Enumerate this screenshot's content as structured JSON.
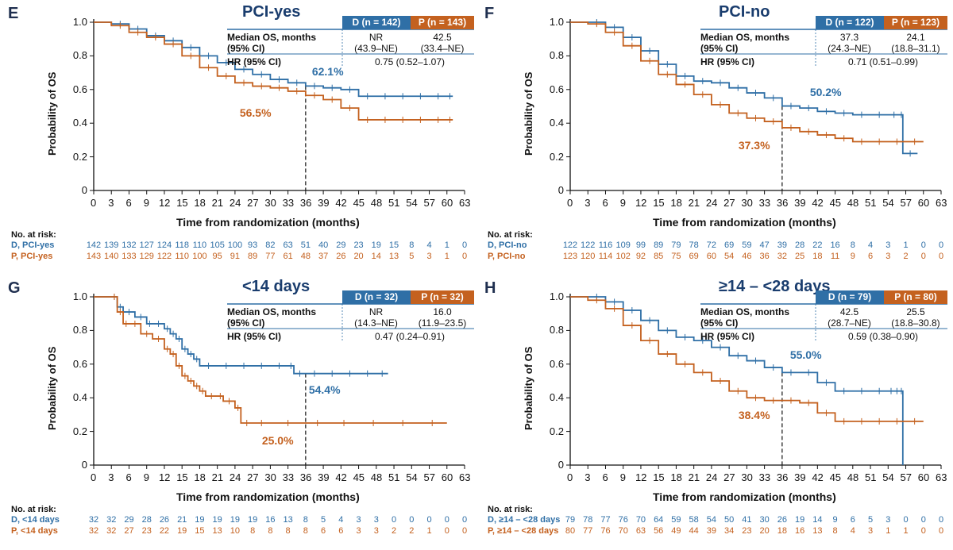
{
  "colors": {
    "D": "#2f6fa6",
    "P": "#c4611f",
    "header_d": "#2f6fa6",
    "header_p": "#c4611f"
  },
  "common": {
    "ylabel": "Probability of OS",
    "xlabel": "Time from randomization (months)",
    "yticks": [
      "1.0",
      "0.8",
      "0.6",
      "0.4",
      "0.2",
      "0"
    ],
    "xticks": [
      "0",
      "3",
      "6",
      "9",
      "12",
      "15",
      "18",
      "21",
      "24",
      "27",
      "30",
      "33",
      "36",
      "39",
      "42",
      "45",
      "48",
      "51",
      "54",
      "57",
      "60",
      "63"
    ],
    "risk_title": "No. at risk:",
    "table_labels": {
      "median": "Median OS, months",
      "ci": "(95% CI)",
      "hr": "HR (95% CI)"
    }
  },
  "chart_data": [
    {
      "type": "line",
      "panel": "E",
      "title": "PCI-yes",
      "xlabel": "Time from randomization (months)",
      "ylabel": "Probability of OS",
      "xlim": [
        0,
        63
      ],
      "ylim": [
        0,
        1.0
      ],
      "grid": false,
      "reference_month": 36,
      "header_d": "D (n = 142)",
      "header_p": "P (n = 143)",
      "median_d": "NR",
      "median_p": "42.5",
      "ci_d": "(43.9–NE)",
      "ci_p": "(33.4–NE)",
      "hr": "0.75 (0.52–1.07)",
      "label_d": "62.1%",
      "label_p": "56.5%",
      "risk_label_d": "D, PCI-yes",
      "risk_label_p": "P, PCI-yes",
      "risk_d": [
        "142",
        "139",
        "132",
        "127",
        "124",
        "118",
        "110",
        "105",
        "100",
        "93",
        "82",
        "63",
        "51",
        "40",
        "29",
        "23",
        "19",
        "15",
        "8",
        "4",
        "1",
        "0"
      ],
      "risk_p": [
        "143",
        "140",
        "133",
        "129",
        "122",
        "110",
        "100",
        "95",
        "91",
        "89",
        "77",
        "61",
        "48",
        "37",
        "26",
        "20",
        "14",
        "13",
        "5",
        "3",
        "1",
        "0"
      ],
      "series": [
        {
          "name": "D",
          "x": [
            0,
            3,
            6,
            9,
            12,
            15,
            18,
            21,
            24,
            27,
            30,
            33,
            36,
            39,
            42,
            45,
            48,
            51,
            54,
            57,
            60,
            61
          ],
          "y": [
            1.0,
            0.99,
            0.96,
            0.92,
            0.89,
            0.85,
            0.8,
            0.76,
            0.72,
            0.69,
            0.66,
            0.64,
            0.621,
            0.61,
            0.6,
            0.56,
            0.56,
            0.56,
            0.56,
            0.56,
            0.56,
            0.56
          ]
        },
        {
          "name": "P",
          "x": [
            0,
            3,
            6,
            9,
            12,
            15,
            18,
            21,
            24,
            27,
            30,
            33,
            36,
            39,
            42,
            45,
            48,
            51,
            54,
            57,
            60,
            61
          ],
          "y": [
            1.0,
            0.98,
            0.94,
            0.91,
            0.87,
            0.8,
            0.73,
            0.68,
            0.64,
            0.62,
            0.61,
            0.59,
            0.565,
            0.54,
            0.49,
            0.42,
            0.42,
            0.42,
            0.42,
            0.42,
            0.42,
            0.42
          ]
        }
      ]
    },
    {
      "type": "line",
      "panel": "F",
      "title": "PCI-no",
      "xlabel": "Time from randomization (months)",
      "ylabel": "Probability of OS",
      "xlim": [
        0,
        63
      ],
      "ylim": [
        0,
        1.0
      ],
      "grid": false,
      "reference_month": 36,
      "header_d": "D (n = 122)",
      "header_p": "P (n = 123)",
      "median_d": "37.3",
      "median_p": "24.1",
      "ci_d": "(24.3–NE)",
      "ci_p": "(18.8–31.1)",
      "hr": "0.71 (0.51–0.99)",
      "label_d": "50.2%",
      "label_p": "37.3%",
      "risk_label_d": "D, PCI-no",
      "risk_label_p": "P, PCI-no",
      "risk_d": [
        "122",
        "122",
        "116",
        "109",
        "99",
        "89",
        "79",
        "78",
        "72",
        "69",
        "59",
        "47",
        "39",
        "28",
        "22",
        "16",
        "8",
        "4",
        "3",
        "1",
        "0",
        "0"
      ],
      "risk_p": [
        "123",
        "120",
        "114",
        "102",
        "92",
        "85",
        "75",
        "69",
        "60",
        "54",
        "46",
        "36",
        "32",
        "25",
        "18",
        "11",
        "9",
        "6",
        "3",
        "2",
        "0",
        "0"
      ],
      "series": [
        {
          "name": "D",
          "x": [
            0,
            3,
            6,
            9,
            12,
            15,
            18,
            21,
            24,
            27,
            30,
            33,
            36,
            39,
            42,
            45,
            48,
            51,
            54,
            56,
            56.5,
            59
          ],
          "y": [
            1.0,
            1.0,
            0.97,
            0.91,
            0.83,
            0.75,
            0.68,
            0.65,
            0.64,
            0.61,
            0.58,
            0.55,
            0.502,
            0.49,
            0.47,
            0.46,
            0.45,
            0.45,
            0.45,
            0.45,
            0.22,
            0.22
          ]
        },
        {
          "name": "P",
          "x": [
            0,
            3,
            6,
            9,
            12,
            15,
            18,
            21,
            24,
            27,
            30,
            33,
            36,
            39,
            42,
            45,
            48,
            51,
            54,
            57,
            60
          ],
          "y": [
            1.0,
            0.99,
            0.94,
            0.86,
            0.77,
            0.69,
            0.63,
            0.57,
            0.51,
            0.46,
            0.43,
            0.41,
            0.373,
            0.35,
            0.33,
            0.31,
            0.29,
            0.29,
            0.29,
            0.29,
            0.29
          ]
        }
      ]
    },
    {
      "type": "line",
      "panel": "G",
      "title": "<14 days",
      "xlabel": "Time from randomization (months)",
      "ylabel": "Probability of OS",
      "xlim": [
        0,
        63
      ],
      "ylim": [
        0,
        1.0
      ],
      "grid": false,
      "reference_month": 36,
      "header_d": "D (n = 32)",
      "header_p": "P (n = 32)",
      "median_d": "NR",
      "median_p": "16.0",
      "ci_d": "(14.3–NE)",
      "ci_p": "(11.9–23.5)",
      "hr": "0.47 (0.24–0.91)",
      "label_d": "54.4%",
      "label_p": "25.0%",
      "risk_label_d": "D, <14 days",
      "risk_label_p": "P, <14 days",
      "risk_d": [
        "32",
        "32",
        "29",
        "28",
        "26",
        "21",
        "19",
        "19",
        "19",
        "19",
        "16",
        "13",
        "8",
        "5",
        "4",
        "3",
        "3",
        "0",
        "0",
        "0",
        "0",
        "0"
      ],
      "risk_p": [
        "32",
        "32",
        "27",
        "23",
        "22",
        "19",
        "15",
        "13",
        "10",
        "8",
        "8",
        "8",
        "8",
        "6",
        "6",
        "3",
        "3",
        "2",
        "2",
        "1",
        "0",
        "0"
      ],
      "series": [
        {
          "name": "D",
          "x": [
            0,
            3,
            4,
            5,
            7,
            9,
            10,
            12,
            13,
            14,
            15,
            16,
            17,
            18,
            21,
            24,
            27,
            30,
            33,
            34,
            36,
            39,
            42,
            45,
            48,
            50
          ],
          "y": [
            1.0,
            1.0,
            0.94,
            0.91,
            0.88,
            0.84,
            0.84,
            0.81,
            0.78,
            0.75,
            0.69,
            0.66,
            0.63,
            0.59,
            0.59,
            0.59,
            0.59,
            0.59,
            0.59,
            0.544,
            0.544,
            0.544,
            0.544,
            0.544,
            0.544,
            0.544
          ]
        },
        {
          "name": "P",
          "x": [
            0,
            3,
            4,
            5,
            6,
            8,
            10,
            12,
            13,
            14,
            15,
            16,
            17,
            18,
            19,
            21,
            22,
            24,
            25,
            27,
            30,
            36,
            40,
            45,
            50,
            55,
            60
          ],
          "y": [
            1.0,
            1.0,
            0.91,
            0.84,
            0.84,
            0.78,
            0.75,
            0.69,
            0.66,
            0.59,
            0.53,
            0.5,
            0.47,
            0.44,
            0.41,
            0.41,
            0.38,
            0.34,
            0.25,
            0.25,
            0.25,
            0.25,
            0.25,
            0.25,
            0.25,
            0.25,
            0.25
          ]
        }
      ]
    },
    {
      "type": "line",
      "panel": "H",
      "title": "≥14 – <28 days",
      "xlabel": "Time from randomization (months)",
      "ylabel": "Probability of OS",
      "xlim": [
        0,
        63
      ],
      "ylim": [
        0,
        1.0
      ],
      "grid": false,
      "reference_month": 36,
      "header_d": "D (n = 79)",
      "header_p": "P (n = 80)",
      "median_d": "42.5",
      "median_p": "25.5",
      "ci_d": "(28.7–NE)",
      "ci_p": "(18.8–30.8)",
      "hr": "0.59 (0.38–0.90)",
      "label_d": "55.0%",
      "label_p": "38.4%",
      "risk_label_d": "D, ≥14 – <28 days",
      "risk_label_p": "P, ≥14 – <28 days",
      "risk_d": [
        "79",
        "78",
        "77",
        "76",
        "70",
        "64",
        "59",
        "58",
        "54",
        "50",
        "41",
        "30",
        "26",
        "19",
        "14",
        "9",
        "6",
        "5",
        "3",
        "0",
        "0",
        "0"
      ],
      "risk_p": [
        "80",
        "77",
        "76",
        "70",
        "63",
        "56",
        "49",
        "44",
        "39",
        "34",
        "23",
        "20",
        "18",
        "16",
        "13",
        "8",
        "4",
        "3",
        "1",
        "1",
        "0",
        "0"
      ],
      "series": [
        {
          "name": "D",
          "x": [
            0,
            3,
            6,
            9,
            12,
            15,
            18,
            21,
            24,
            27,
            30,
            33,
            36,
            39,
            42,
            45,
            48,
            51,
            54,
            55,
            56,
            56.5
          ],
          "y": [
            1.0,
            1.0,
            0.97,
            0.92,
            0.86,
            0.8,
            0.76,
            0.74,
            0.7,
            0.65,
            0.62,
            0.58,
            0.55,
            0.55,
            0.49,
            0.44,
            0.44,
            0.44,
            0.44,
            0.44,
            0.44,
            0.0
          ]
        },
        {
          "name": "P",
          "x": [
            0,
            3,
            6,
            9,
            12,
            15,
            18,
            21,
            24,
            27,
            30,
            33,
            36,
            39,
            42,
            45,
            48,
            51,
            54,
            57,
            60
          ],
          "y": [
            1.0,
            0.98,
            0.93,
            0.83,
            0.74,
            0.66,
            0.6,
            0.55,
            0.5,
            0.44,
            0.4,
            0.384,
            0.384,
            0.37,
            0.31,
            0.26,
            0.26,
            0.26,
            0.26,
            0.26,
            0.26
          ]
        }
      ]
    }
  ]
}
